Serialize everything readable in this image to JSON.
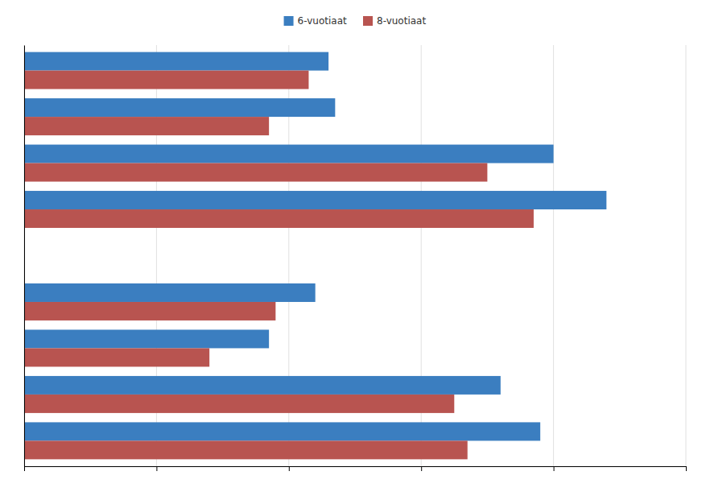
{
  "chart_data": {
    "type": "bar",
    "orientation": "horizontal",
    "categories": [
      null,
      null,
      null,
      null,
      null,
      null,
      null,
      null,
      null
    ],
    "series": [
      {
        "name": "6-vuotiaat",
        "color": "#3B7EC0",
        "values": [
          78,
          72,
          37,
          44,
          0,
          88,
          80,
          47,
          46
        ]
      },
      {
        "name": "8-vuotiaat",
        "color": "#B85450",
        "values": [
          67,
          65,
          28,
          38,
          0,
          77,
          70,
          37,
          43
        ]
      }
    ],
    "xlim": [
      0,
      100
    ],
    "xticks": [
      0,
      20,
      40,
      60,
      80,
      100
    ],
    "grid": true,
    "legend": "top",
    "tick_labels": false
  }
}
